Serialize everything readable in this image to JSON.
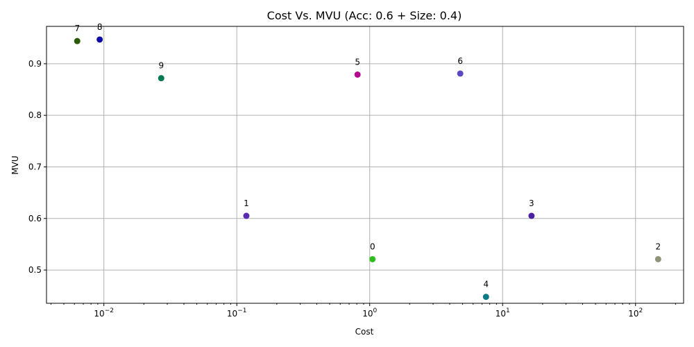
{
  "chart_data": {
    "type": "scatter",
    "title": "Cost Vs. MVU (Acc: 0.6 + Size: 0.4)",
    "xlabel": "Cost",
    "ylabel": "MVU",
    "xscale": "log",
    "xlim": [
      0.0037,
      230
    ],
    "ylim": [
      0.4355,
      0.9725
    ],
    "grid": true,
    "xticks": [
      {
        "value": 0.01,
        "base": "10",
        "exp": "−2"
      },
      {
        "value": 0.1,
        "base": "10",
        "exp": "−1"
      },
      {
        "value": 1,
        "base": "10",
        "exp": "0"
      },
      {
        "value": 10,
        "base": "10",
        "exp": "1"
      },
      {
        "value": 100,
        "base": "10",
        "exp": "2"
      }
    ],
    "yticks": [
      {
        "value": 0.5,
        "label": "0.5"
      },
      {
        "value": 0.6,
        "label": "0.6"
      },
      {
        "value": 0.7,
        "label": "0.7"
      },
      {
        "value": 0.8,
        "label": "0.8"
      },
      {
        "value": 0.9,
        "label": "0.9"
      }
    ],
    "points": [
      {
        "label": "0",
        "x": 1.05,
        "y": 0.521,
        "color": "#2ebd1f"
      },
      {
        "label": "1",
        "x": 0.118,
        "y": 0.605,
        "color": "#5a2ab0"
      },
      {
        "label": "2",
        "x": 148,
        "y": 0.521,
        "color": "#8f9478"
      },
      {
        "label": "3",
        "x": 16.5,
        "y": 0.605,
        "color": "#4a22a0"
      },
      {
        "label": "4",
        "x": 7.5,
        "y": 0.448,
        "color": "#0b7a86"
      },
      {
        "label": "5",
        "x": 0.81,
        "y": 0.879,
        "color": "#b3088f"
      },
      {
        "label": "6",
        "x": 4.8,
        "y": 0.881,
        "color": "#5b48c0"
      },
      {
        "label": "7",
        "x": 0.0063,
        "y": 0.944,
        "color": "#2a5b08"
      },
      {
        "label": "8",
        "x": 0.0093,
        "y": 0.947,
        "color": "#0e0aa8"
      },
      {
        "label": "9",
        "x": 0.027,
        "y": 0.872,
        "color": "#03794f"
      }
    ]
  }
}
